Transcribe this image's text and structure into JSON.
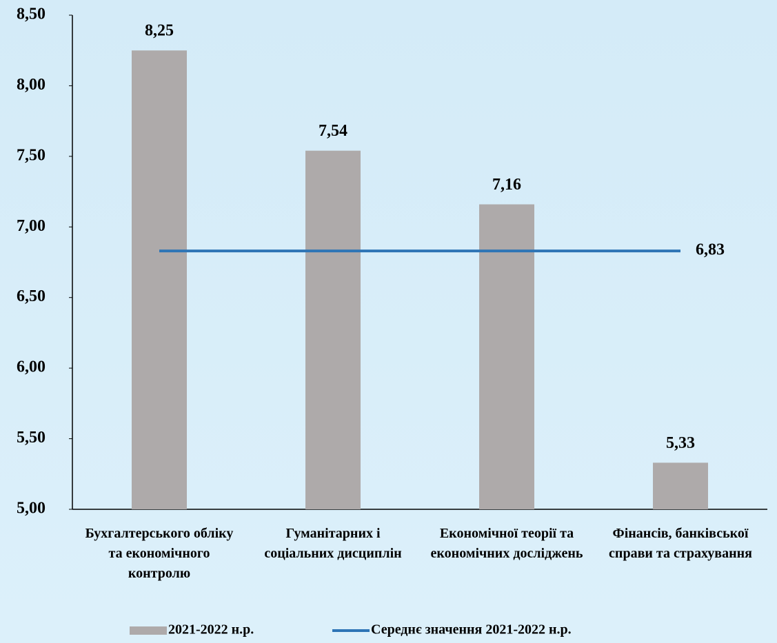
{
  "chart_data": {
    "type": "bar",
    "categories": [
      "Бухгалтерського обліку та економічного контролю",
      "Гуманітарних і соціальних дисциплін",
      "Економічної теорії та економічних досліджень",
      "Фінансів, банківської справи та страхування"
    ],
    "series": [
      {
        "name": "2021-2022 н.р.",
        "type": "bar",
        "color": "#aeaaaa",
        "values": [
          8.25,
          7.54,
          7.16,
          5.33
        ],
        "value_labels": [
          "8,25",
          "7,54",
          "7,16",
          "5,33"
        ]
      },
      {
        "name": "Середнє значення 2021-2022 н.р.",
        "type": "line",
        "color": "#2e75b6",
        "values": [
          6.83,
          6.83,
          6.83,
          6.83
        ],
        "value_labels": [
          null,
          null,
          null,
          "6,83"
        ]
      }
    ],
    "ylim": [
      5,
      8.5
    ],
    "yticks": [
      {
        "value": 5,
        "label": "5,00"
      },
      {
        "value": 5.5,
        "label": "5,50"
      },
      {
        "value": 6,
        "label": "6,00"
      },
      {
        "value": 6.5,
        "label": "6,50"
      },
      {
        "value": 7,
        "label": "7,00"
      },
      {
        "value": 7.5,
        "label": "7,50"
      },
      {
        "value": 8,
        "label": "8,00"
      },
      {
        "value": 8.5,
        "label": "8,50"
      }
    ],
    "grid": false,
    "legend": "bottom"
  }
}
